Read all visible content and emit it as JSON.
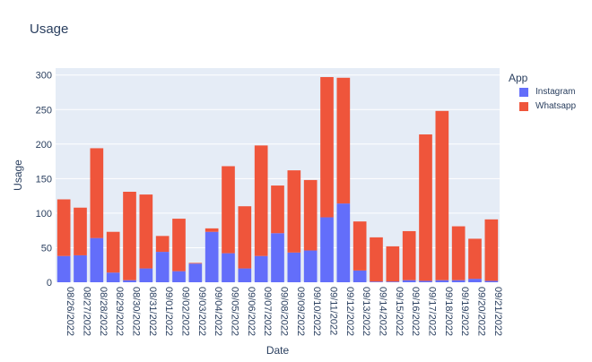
{
  "title": "Usage",
  "legend": {
    "title": "App",
    "items": [
      {
        "label": "Instagram",
        "color": "#636efa"
      },
      {
        "label": "Whatsapp",
        "color": "#ef553b"
      }
    ]
  },
  "chart_data": {
    "type": "bar",
    "stacked": true,
    "title": "Usage",
    "xlabel": "Date",
    "ylabel": "Usage",
    "ylim": [
      0,
      310
    ],
    "yticks": [
      0,
      50,
      100,
      150,
      200,
      250,
      300
    ],
    "grid": true,
    "legend_position": "right",
    "categories": [
      "08/26/2022",
      "08/27/2022",
      "08/28/2022",
      "08/29/2022",
      "08/30/2022",
      "08/31/2022",
      "09/01/2022",
      "09/02/2022",
      "09/03/2022",
      "09/04/2022",
      "09/05/2022",
      "09/06/2022",
      "09/07/2022",
      "09/08/2022",
      "09/09/2022",
      "09/10/2022",
      "09/11/2022",
      "09/12/2022",
      "09/13/2022",
      "09/14/2022",
      "09/15/2022",
      "09/16/2022",
      "09/17/2022",
      "09/18/2022",
      "09/19/2022",
      "09/20/2022",
      "09/21/2022"
    ],
    "series": [
      {
        "name": "Instagram",
        "color": "#636efa",
        "values": [
          38,
          39,
          64,
          14,
          3,
          20,
          44,
          16,
          27,
          73,
          42,
          20,
          38,
          71,
          43,
          46,
          94,
          114,
          17,
          1,
          1,
          3,
          2,
          3,
          3,
          5,
          2
        ]
      },
      {
        "name": "Whatsapp",
        "color": "#ef553b",
        "values": [
          82,
          69,
          130,
          59,
          128,
          107,
          23,
          76,
          1,
          5,
          126,
          90,
          160,
          69,
          119,
          102,
          203,
          182,
          71,
          64,
          51,
          71,
          212,
          245,
          78,
          58,
          89
        ]
      }
    ]
  }
}
